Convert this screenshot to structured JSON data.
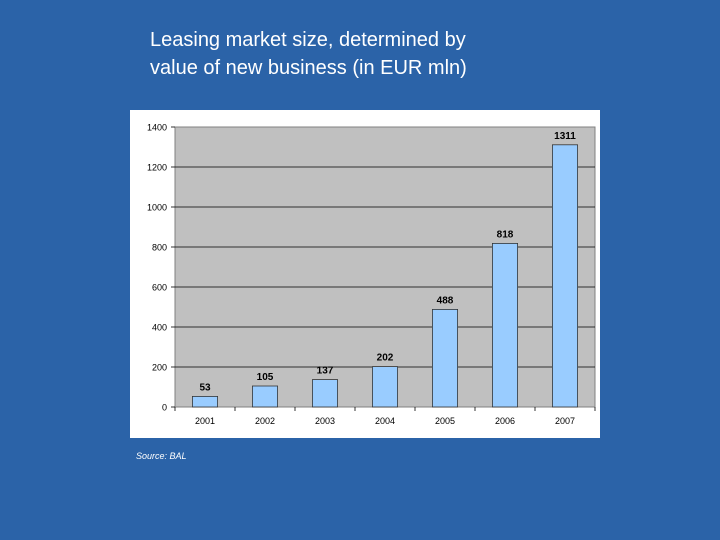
{
  "slide": {
    "title_line1": "Leasing market size, determined by",
    "title_line2": "value of new business (in EUR mln)",
    "source": "Source: BAL"
  },
  "colors": {
    "background": "#2b63a8",
    "plot_area": "#c0c0c0",
    "bar_fill": "#99ccff",
    "bar_stroke": "#333333"
  },
  "chart_data": {
    "type": "bar",
    "title": "",
    "xlabel": "",
    "ylabel": "",
    "categories": [
      "2001",
      "2002",
      "2003",
      "2004",
      "2005",
      "2006",
      "2007"
    ],
    "series": [
      {
        "values": [
          53,
          105,
          137,
          202,
          488,
          818,
          1311
        ]
      }
    ],
    "data_labels": [
      "53",
      "105",
      "137",
      "202",
      "488",
      "818",
      "1311"
    ],
    "ylim": [
      0,
      1400
    ],
    "yticks": [
      "0",
      "200",
      "400",
      "600",
      "800",
      "1000",
      "1200",
      "1400"
    ],
    "grid": true,
    "legend": "none"
  }
}
